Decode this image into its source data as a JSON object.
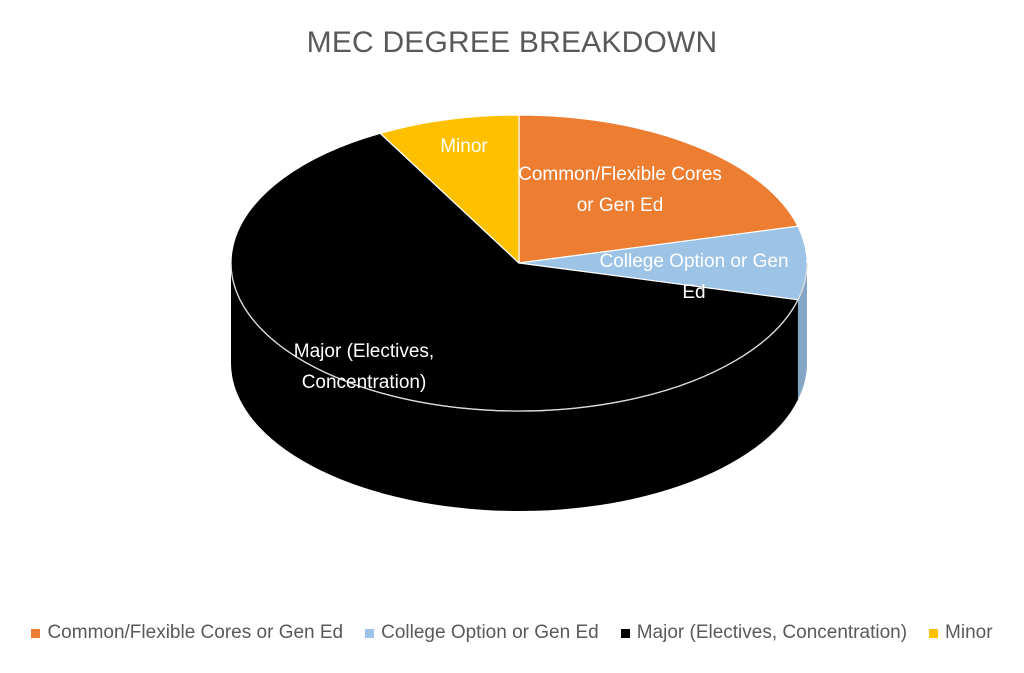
{
  "chart_data": {
    "type": "pie",
    "title": "MEC DEGREE BREAKDOWN",
    "slices": [
      {
        "label": "Common/Flexible Cores or Gen Ed",
        "value": 21,
        "color": "#ED7D31",
        "label_color": "#ffffff",
        "label_lines": [
          "Common/Flexible Cores",
          "or Gen Ed"
        ]
      },
      {
        "label": "College Option or Gen Ed",
        "value": 8,
        "color": "#9DC3E6",
        "label_color": "#ffffff",
        "label_lines": [
          "College Option or Gen",
          "Ed"
        ]
      },
      {
        "label": "Major (Electives, Concentration)",
        "value": 63,
        "color": "#000000",
        "label_color": "#ffffff",
        "label_lines": [
          "Major (Electives,",
          "Concentration)"
        ]
      },
      {
        "label": "Minor",
        "value": 8,
        "color": "#FFC000",
        "label_color": "#ffffff",
        "label_lines": [
          "Minor"
        ]
      }
    ],
    "legend_position": "bottom",
    "style": "3d-pie"
  }
}
